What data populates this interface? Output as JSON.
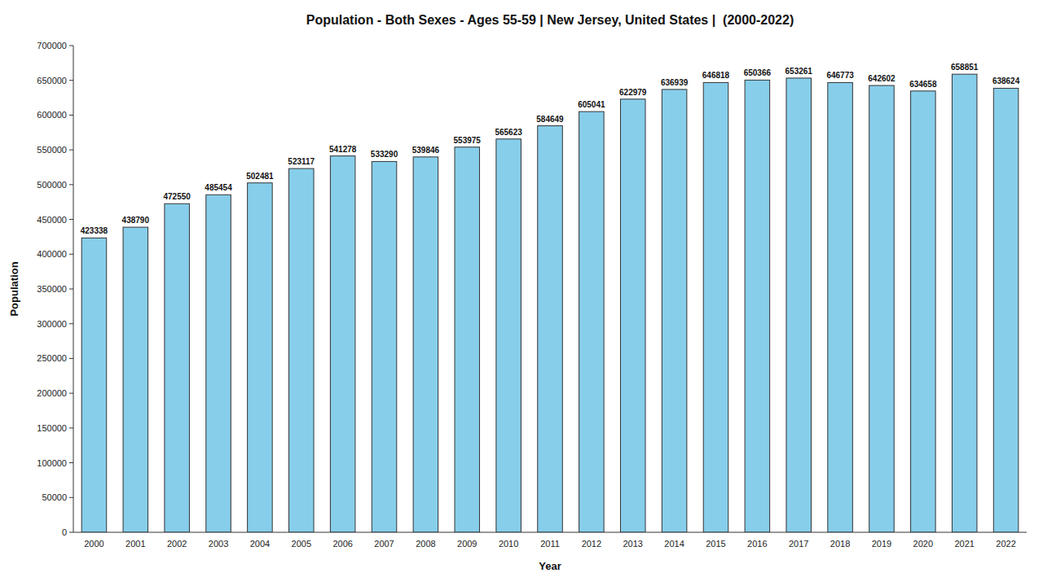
{
  "chart_data": {
    "type": "bar",
    "title": "Population - Both Sexes - Ages 55-59 | New Jersey, United States |  (2000-2022)",
    "x_label": "Year",
    "y_label": "Population",
    "categories": [
      "2000",
      "2001",
      "2002",
      "2003",
      "2004",
      "2005",
      "2006",
      "2007",
      "2008",
      "2009",
      "2010",
      "2011",
      "2012",
      "2013",
      "2014",
      "2015",
      "2016",
      "2017",
      "2018",
      "2019",
      "2020",
      "2021",
      "2022"
    ],
    "values": [
      423338,
      438790,
      472550,
      485454,
      502481,
      523117,
      541278,
      533290,
      539846,
      553975,
      565623,
      584649,
      605041,
      622979,
      636939,
      646818,
      650366,
      653261,
      646773,
      642602,
      634658,
      658851,
      638624
    ],
    "color": "#87ceeb",
    "ylim": [
      0,
      700000
    ],
    "yticks": [
      0,
      50000,
      100000,
      150000,
      200000,
      250000,
      300000,
      350000,
      400000,
      450000,
      500000,
      550000,
      600000,
      650000,
      700000
    ],
    "grid": false,
    "data_labels": true
  }
}
